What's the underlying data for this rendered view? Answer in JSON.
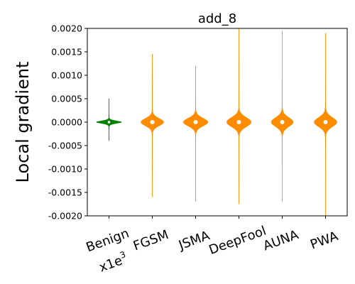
{
  "chart_data": {
    "type": "violin",
    "title": "add_8",
    "ylabel": "Local gradient",
    "xlabel": "",
    "ylim": [
      -0.002,
      0.002
    ],
    "yticks": [
      "0.0020",
      "0.0015",
      "0.0010",
      "0.0005",
      "0.0000",
      "-0.0005",
      "-0.0010",
      "-0.0015",
      "-0.0020"
    ],
    "ytick_values": [
      0.002,
      0.0015,
      0.001,
      0.0005,
      0.0,
      -0.0005,
      -0.001,
      -0.0015,
      -0.002
    ],
    "grid": false,
    "categories": [
      "Benign",
      "FGSM",
      "JSMA",
      "DeepFool",
      "AUNA",
      "PWA"
    ],
    "benign_scale_label": "x1e",
    "benign_scale_exp": "3",
    "colors": {
      "benign": "#008000",
      "adversarial": "#ff8c00",
      "median": "#ffffff"
    },
    "series": [
      {
        "category": "Benign",
        "color": "#008000",
        "median": 0.0,
        "min": -0.0004,
        "max": 0.0005,
        "max_halfwidth": 0.28
      },
      {
        "category": "FGSM",
        "color": "#ff8c00",
        "median": 0.0,
        "min": -0.0016,
        "max": 0.00145,
        "max_halfwidth": 0.26
      },
      {
        "category": "JSMA",
        "color": "#ff8c00",
        "median": 0.0,
        "min": -0.0017,
        "max": 0.0012,
        "max_halfwidth": 0.28
      },
      {
        "category": "DeepFool",
        "color": "#ff8c00",
        "median": 0.0,
        "min": -0.00175,
        "max": 0.002,
        "max_halfwidth": 0.28
      },
      {
        "category": "AUNA",
        "color": "#ff8c00",
        "median": 0.0,
        "min": -0.0017,
        "max": 0.00195,
        "max_halfwidth": 0.25
      },
      {
        "category": "PWA",
        "color": "#ff8c00",
        "median": 0.0,
        "min": -0.002,
        "max": 0.0019,
        "max_halfwidth": 0.26
      }
    ]
  }
}
